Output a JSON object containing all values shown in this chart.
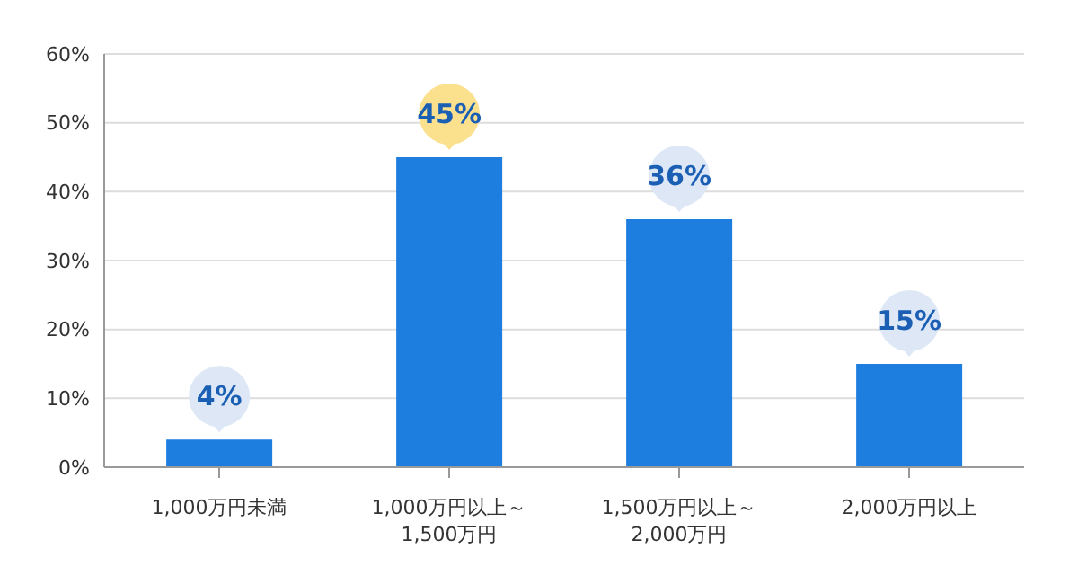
{
  "chart_data": {
    "type": "bar",
    "categories": [
      "1,000万円未満",
      "1,000万円以上～1,500万円",
      "1,500万円以上～2,000万円",
      "2,000万円以上"
    ],
    "values": [
      4,
      45,
      36,
      15
    ],
    "color": "#1e7ee0",
    "value_labels": [
      "4%",
      "45%",
      "36%",
      "15%"
    ],
    "ylim": [
      0,
      60
    ],
    "yticks": [
      {
        "value": 0,
        "label": "0%"
      },
      {
        "value": 10,
        "label": "10%"
      },
      {
        "value": 20,
        "label": "20%"
      },
      {
        "value": 30,
        "label": "30%"
      },
      {
        "value": 40,
        "label": "40%"
      },
      {
        "value": 50,
        "label": "50%"
      },
      {
        "value": 60,
        "label": "60%"
      }
    ],
    "grid": "y",
    "legend": false
  }
}
